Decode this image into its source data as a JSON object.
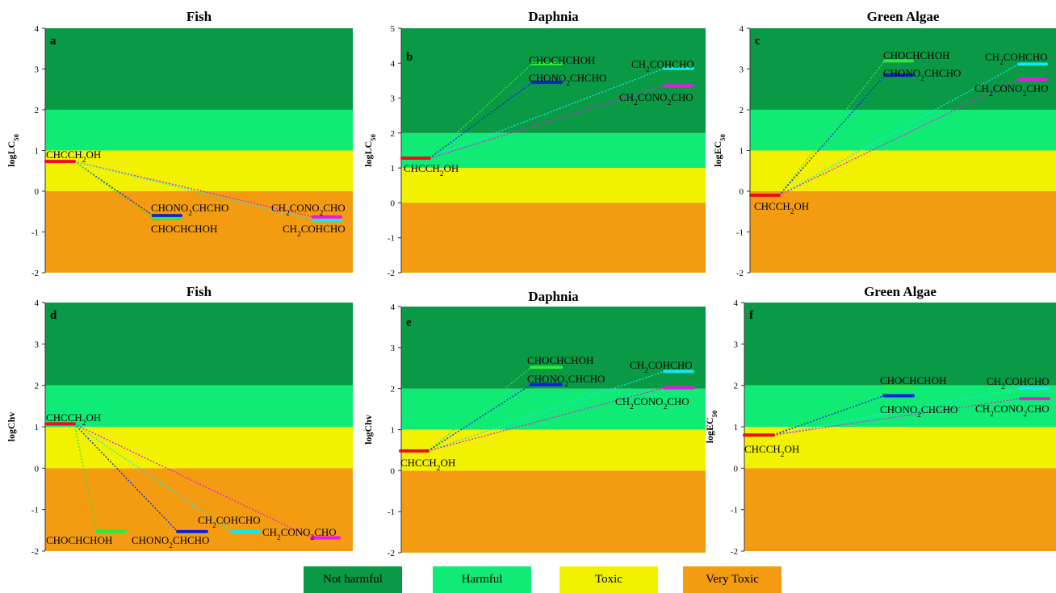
{
  "zone_colors": {
    "very_toxic": "#f39c12",
    "toxic": "#f2f200",
    "harmful": "#10eb76",
    "not_harmful": "#0a9a45"
  },
  "compound_colors": {
    "CHCCH2OH": "#e8101a",
    "CHOCHCHOH": "#2ee83a",
    "CHONO2CHCHO": "#1020d8",
    "CH2COHCHO": "#14e8e8",
    "CH2CONO2CHO": "#e818e8"
  },
  "legend": [
    {
      "label": "Not harmful",
      "color": "#0a9a45"
    },
    {
      "label": "Harmful",
      "color": "#10eb76"
    },
    {
      "label": "Toxic",
      "color": "#f2f200"
    },
    {
      "label": "Very Toxic",
      "color": "#f39c12"
    }
  ],
  "chart_data": [
    {
      "panel": "a",
      "title": "Fish",
      "ylabel_html": "logLC<sub>50</sub>",
      "type": "toxicity-range",
      "ylim": [
        -2,
        4
      ],
      "yticks": [
        4,
        3,
        2,
        1,
        0,
        -1,
        -2
      ],
      "bands": {
        "very_toxic": [
          -2,
          0
        ],
        "toxic": [
          0,
          1
        ],
        "harmful": [
          1,
          2
        ],
        "not_harmful": [
          2,
          4
        ]
      },
      "parent": {
        "label_html": "CHCCH<sub>2</sub>OH",
        "value": 0.73
      },
      "products": [
        {
          "id": "CHONO2CHCHO",
          "label_html": "CHONO<sub>2</sub>CHCHO",
          "value": -0.6
        },
        {
          "id": "CHOCHCHOH",
          "label_html": "CHOCHCHOH",
          "value": -0.67
        },
        {
          "id": "CH2CONO2CHO",
          "label_html": "CH<sub>2</sub>CONO<sub>2</sub>CHO",
          "value": -0.63
        },
        {
          "id": "CH2COHCHO",
          "label_html": "CH<sub>2</sub>COHCHO",
          "value": -0.72
        }
      ]
    },
    {
      "panel": "b",
      "title": "Daphnia",
      "ylabel_html": "logLC<sub>50</sub>",
      "type": "toxicity-range",
      "ylim": [
        -2,
        5
      ],
      "yticks": [
        5,
        4,
        3,
        2,
        1,
        0,
        -1,
        -2
      ],
      "bands": {
        "very_toxic": [
          -2,
          0
        ],
        "toxic": [
          0,
          1
        ],
        "harmful": [
          1,
          2
        ],
        "not_harmful": [
          2,
          5
        ]
      },
      "parent": {
        "label_html": "CHCCH<sub>2</sub>OH",
        "value": 1.28
      },
      "products": [
        {
          "id": "CHOCHCHOH",
          "label_html": "CHOCHCHOH",
          "value": 3.98
        },
        {
          "id": "CHONO2CHCHO",
          "label_html": "CHONO<sub>2</sub>CHCHO",
          "value": 3.45
        },
        {
          "id": "CH2COHCHO",
          "label_html": "CH<sub>2</sub>COHCHO",
          "value": 3.85
        },
        {
          "id": "CH2CONO2CHO",
          "label_html": "CH<sub>2</sub>CONO<sub>2</sub>CHO",
          "value": 3.35
        }
      ]
    },
    {
      "panel": "c",
      "title": "Green Algae",
      "ylabel_html": "logEC<sub>50</sub>",
      "type": "toxicity-range",
      "ylim": [
        -2,
        4
      ],
      "yticks": [
        4,
        3,
        2,
        1,
        0,
        -1,
        -2
      ],
      "bands": {
        "very_toxic": [
          -2,
          0
        ],
        "toxic": [
          0,
          1
        ],
        "harmful": [
          1,
          2
        ],
        "not_harmful": [
          2,
          4
        ]
      },
      "parent": {
        "label_html": "CHCCH<sub>2</sub>OH",
        "value": -0.1
      },
      "products": [
        {
          "id": "CHOCHCHOH",
          "label_html": "CHOCHCHOH",
          "value": 3.2
        },
        {
          "id": "CHONO2CHCHO",
          "label_html": "CHONO<sub>2</sub>CHCHO",
          "value": 2.85
        },
        {
          "id": "CH2COHCHO",
          "label_html": "CH<sub>2</sub>COHCHO",
          "value": 3.12
        },
        {
          "id": "CH2CONO2CHO",
          "label_html": "CH<sub>2</sub>CONO<sub>2</sub>CHO",
          "value": 2.75
        }
      ]
    },
    {
      "panel": "d",
      "title": "Fish",
      "ylabel_html": "logChv",
      "type": "toxicity-range",
      "ylim": [
        -2,
        4
      ],
      "yticks": [
        4,
        3,
        2,
        1,
        0,
        -1,
        -2
      ],
      "bands": {
        "very_toxic": [
          -2,
          0
        ],
        "toxic": [
          0,
          1
        ],
        "harmful": [
          1,
          2
        ],
        "not_harmful": [
          2,
          4
        ]
      },
      "parent": {
        "label_html": "CHCCH<sub>2</sub>OH",
        "value": 1.07
      },
      "products": [
        {
          "id": "CHOCHCHOH",
          "label_html": "CHOCHCHOH",
          "value": -1.53
        },
        {
          "id": "CHONO2CHCHO",
          "label_html": "CHONO<sub>2</sub>CHCHO",
          "value": -1.53
        },
        {
          "id": "CH2COHCHO",
          "label_html": "CH<sub>2</sub>COHCHO",
          "value": -1.53
        },
        {
          "id": "CH2CONO2CHO",
          "label_html": "CH<sub>2</sub>CONO<sub>2</sub>CHO",
          "value": -1.68
        }
      ]
    },
    {
      "panel": "e",
      "title": "Daphnia",
      "ylabel_html": "logChv",
      "type": "toxicity-range",
      "ylim": [
        -2,
        4
      ],
      "yticks": [
        4,
        3,
        2,
        1,
        0,
        -1,
        -2
      ],
      "bands": {
        "very_toxic": [
          -2,
          0
        ],
        "toxic": [
          0,
          1
        ],
        "harmful": [
          1,
          2
        ],
        "not_harmful": [
          2,
          4
        ]
      },
      "parent": {
        "label_html": "CHCCH<sub>2</sub>OH",
        "value": 0.48
      },
      "products": [
        {
          "id": "CHOCHCHOH",
          "label_html": "CHOCHCHOH",
          "value": 2.52
        },
        {
          "id": "CHONO2CHCHO",
          "label_html": "CHONO<sub>2</sub>CHCHO",
          "value": 2.1
        },
        {
          "id": "CH2COHCHO",
          "label_html": "CH<sub>2</sub>COHCHO",
          "value": 2.42
        },
        {
          "id": "CH2CONO2CHO",
          "label_html": "CH<sub>2</sub>CONO<sub>2</sub>CHO",
          "value": 2.02
        }
      ]
    },
    {
      "panel": "f",
      "title": "Green Algae",
      "ylabel_html": "logEC<sub>50</sub>",
      "type": "toxicity-range",
      "ylim": [
        -2,
        4
      ],
      "yticks": [
        4,
        3,
        2,
        1,
        0,
        -1,
        -2
      ],
      "bands": {
        "very_toxic": [
          -2,
          0
        ],
        "toxic": [
          0,
          1
        ],
        "harmful": [
          1,
          2
        ],
        "not_harmful": [
          2,
          4
        ]
      },
      "parent": {
        "label_html": "CHCCH<sub>2</sub>OH",
        "value": 0.8
      },
      "products": [
        {
          "id": "CHOCHCHOH",
          "label_html": "CHOCHCHOH",
          "value": 1.97
        },
        {
          "id": "CHONO2CHCHO",
          "label_html": "CHONO<sub>2</sub>CHCHO",
          "value": 1.75
        },
        {
          "id": "CH2COHCHO",
          "label_html": "CH<sub>2</sub>COHCHO",
          "value": 1.93
        },
        {
          "id": "CH2CONO2CHO",
          "label_html": "CH<sub>2</sub>CONO<sub>2</sub>CHO",
          "value": 1.68
        }
      ]
    }
  ]
}
